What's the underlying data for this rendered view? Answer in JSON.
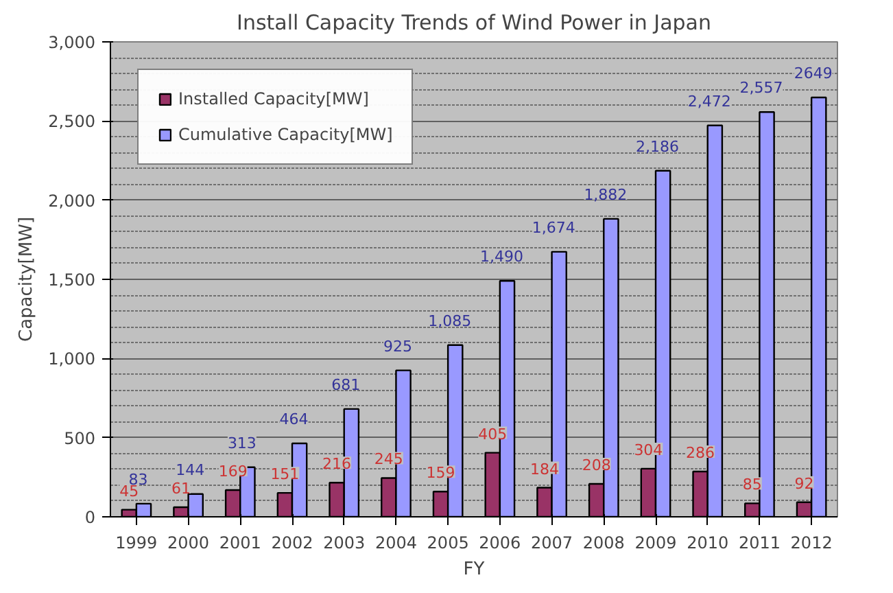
{
  "chart_data": {
    "type": "bar",
    "title": "Install Capacity Trends of Wind Power in Japan",
    "xlabel": "FY",
    "ylabel": "Capacity[MW]",
    "categories": [
      "1999",
      "2000",
      "2001",
      "2002",
      "2003",
      "2004",
      "2005",
      "2006",
      "2007",
      "2008",
      "2009",
      "2010",
      "2011",
      "2012"
    ],
    "series": [
      {
        "name": "Installed Capacity[MW]",
        "color": "#993366",
        "values": [
          45,
          61,
          169,
          151,
          216,
          245,
          159,
          405,
          184,
          208,
          304,
          286,
          85,
          92
        ],
        "value_labels": [
          "45",
          "61",
          "169",
          "151",
          "216",
          "245",
          "159",
          "405",
          "184",
          "208",
          "304",
          "286",
          "85",
          "92"
        ]
      },
      {
        "name": "Cumulative Capacity[MW]",
        "color": "#9999ff",
        "values": [
          83,
          144,
          313,
          464,
          681,
          925,
          1085,
          1490,
          1674,
          1882,
          2186,
          2472,
          2557,
          2649
        ],
        "value_labels": [
          "83",
          "144",
          "313",
          "464",
          "681",
          "925",
          "1,085",
          "1,490",
          "1,674",
          "1,882",
          "2,186",
          "2,472",
          "2,557",
          "2649"
        ]
      }
    ],
    "ylim": [
      0,
      3000
    ],
    "yticks": [
      0,
      500,
      {
        "value": 1000,
        "label": "1,000"
      },
      {
        "value": 1500,
        "label": "1,500"
      },
      {
        "value": 2000,
        "label": "2,000"
      },
      {
        "value": 2500,
        "label": "2,500"
      },
      {
        "value": 3000,
        "label": "3,000"
      }
    ],
    "grid": "y",
    "legend": "top left"
  }
}
